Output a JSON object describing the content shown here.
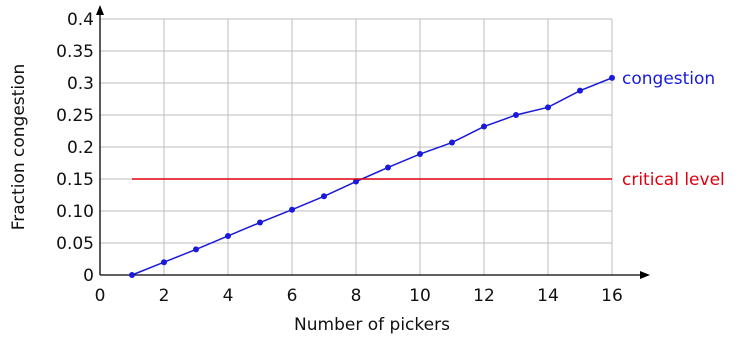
{
  "chart_data": {
    "type": "line",
    "title": "",
    "xlabel": "Number of pickers",
    "ylabel": "Fraction congestion",
    "xlim": [
      0,
      16
    ],
    "ylim": [
      0,
      0.4
    ],
    "x_ticks": [
      "0",
      "2",
      "4",
      "6",
      "8",
      "10",
      "12",
      "14",
      "16"
    ],
    "y_ticks": [
      "0",
      "0.05",
      "0.10",
      "0.15",
      "0.2",
      "0.25",
      "0.3",
      "0.35",
      "0.4"
    ],
    "grid": true,
    "series": [
      {
        "name": "congestion",
        "color": "#1a1adb",
        "markers": true,
        "x": [
          1,
          2,
          3,
          4,
          5,
          6,
          7,
          8,
          9,
          10,
          11,
          12,
          13,
          14,
          15,
          16
        ],
        "y": [
          0.0,
          0.02,
          0.04,
          0.061,
          0.082,
          0.102,
          0.123,
          0.146,
          0.168,
          0.189,
          0.207,
          0.232,
          0.25,
          0.262,
          0.288,
          0.308
        ]
      },
      {
        "name": "critical level",
        "color": "#e0000f",
        "markers": false,
        "x": [
          1,
          16
        ],
        "y": [
          0.15,
          0.15
        ]
      }
    ]
  }
}
